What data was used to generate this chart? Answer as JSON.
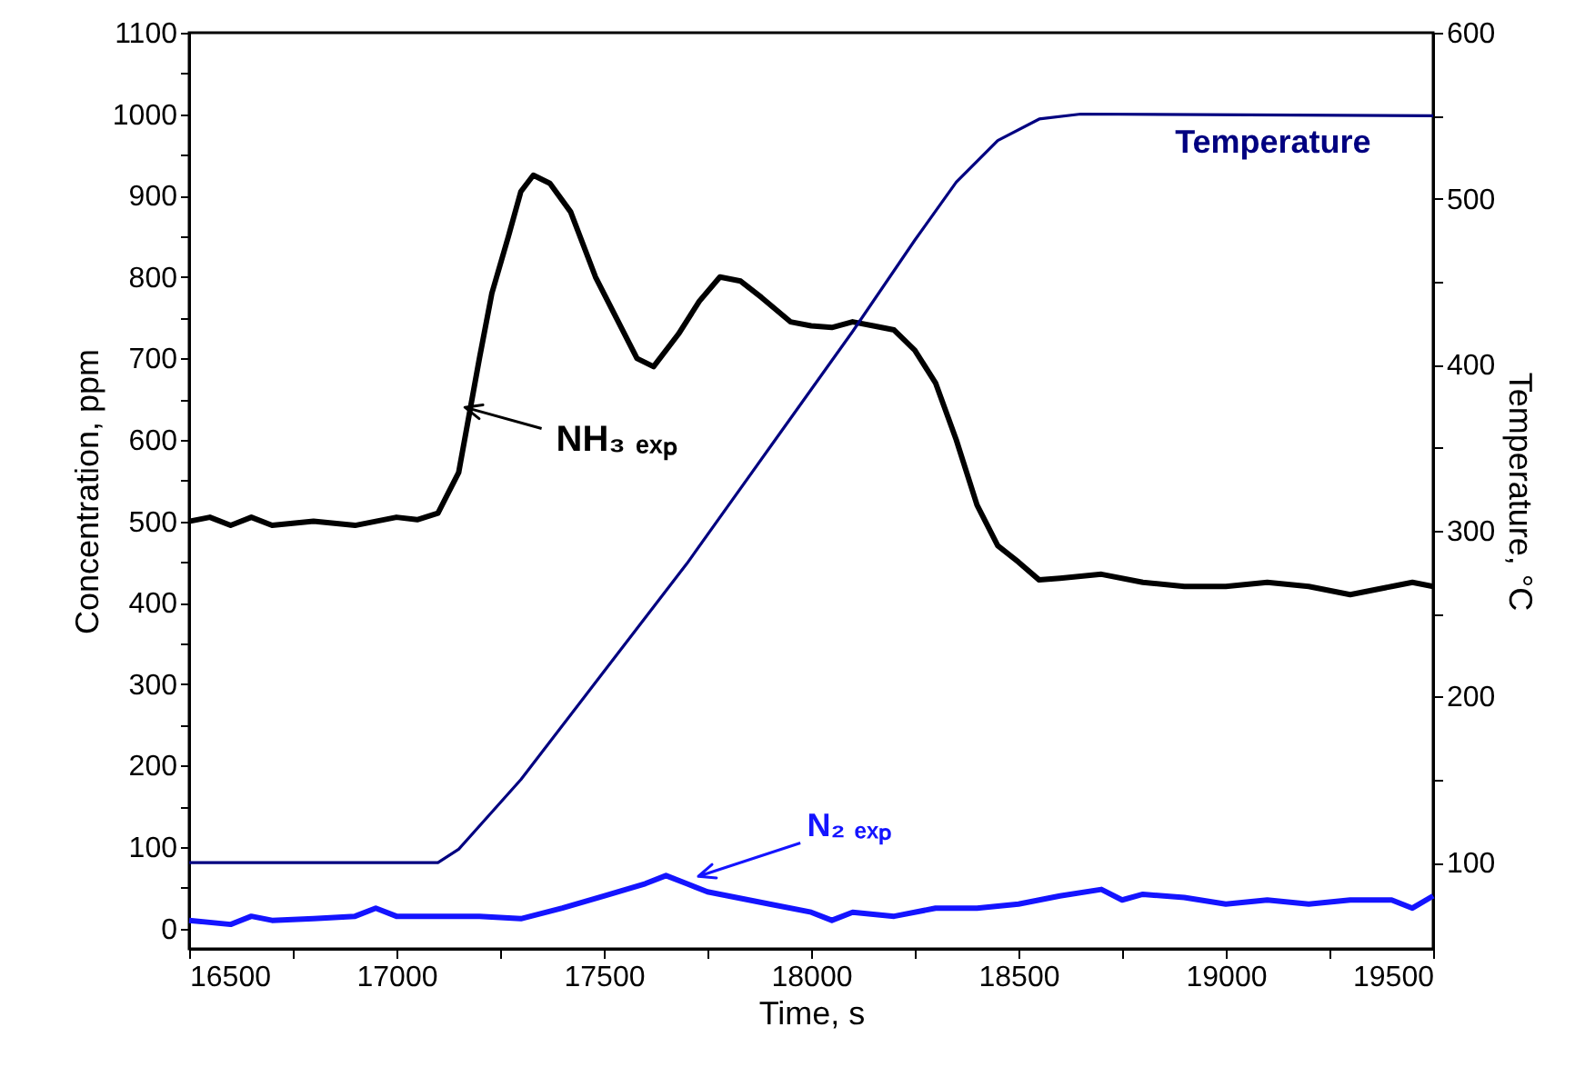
{
  "chart_data": {
    "type": "line",
    "xlabel": "Time, s",
    "ylabel": "Concentration, ppm",
    "y2label": "Temperature, °C",
    "xlim": [
      16500,
      19500
    ],
    "ylim": [
      -25,
      1100
    ],
    "y2lim": [
      48,
      600
    ],
    "xticks": [
      16500,
      {
        "value": 16750,
        "label": null
      },
      17000,
      {
        "value": 17250,
        "label": null
      },
      17500,
      {
        "value": 17750,
        "label": null
      },
      18000,
      {
        "value": 18250,
        "label": null
      },
      18500,
      {
        "value": 18750,
        "label": null
      },
      19000,
      {
        "value": 19250,
        "label": null
      },
      19500
    ],
    "yticks": [
      0,
      {
        "value": 50,
        "label": null
      },
      100,
      {
        "value": 150,
        "label": null
      },
      200,
      {
        "value": 250,
        "label": null
      },
      300,
      {
        "value": 350,
        "label": null
      },
      400,
      {
        "value": 450,
        "label": null
      },
      500,
      {
        "value": 550,
        "label": null
      },
      600,
      {
        "value": 650,
        "label": null
      },
      700,
      {
        "value": 750,
        "label": null
      },
      800,
      {
        "value": 850,
        "label": null
      },
      900,
      {
        "value": 950,
        "label": null
      },
      1000,
      {
        "value": 1050,
        "label": null
      },
      1100
    ],
    "y2ticks": [
      100,
      {
        "value": 150,
        "label": null
      },
      200,
      {
        "value": 250,
        "label": null
      },
      300,
      {
        "value": 350,
        "label": null
      },
      400,
      {
        "value": 450,
        "label": null
      },
      500,
      {
        "value": 550,
        "label": null
      },
      600
    ],
    "grid": false,
    "marker": "none",
    "line_style": "solid",
    "series": [
      {
        "name": "NH₃ ₑₓₚ",
        "color": "#000000",
        "x": [
          16500,
          16550,
          16600,
          16650,
          16700,
          16800,
          16900,
          17000,
          17050,
          17100,
          17150,
          17200,
          17230,
          17270,
          17300,
          17330,
          17370,
          17420,
          17480,
          17530,
          17580,
          17620,
          17680,
          17730,
          17780,
          17830,
          17880,
          17950,
          18000,
          18050,
          18100,
          18150,
          18200,
          18250,
          18300,
          18350,
          18400,
          18450,
          18500,
          18550,
          18600,
          18700,
          18800,
          18900,
          19000,
          19100,
          19200,
          19300,
          19400,
          19450,
          19500
        ],
        "values": [
          500,
          505,
          495,
          505,
          495,
          500,
          495,
          505,
          502,
          510,
          560,
          700,
          780,
          850,
          905,
          925,
          915,
          880,
          800,
          750,
          700,
          690,
          730,
          770,
          800,
          795,
          775,
          745,
          740,
          738,
          745,
          740,
          735,
          710,
          670,
          600,
          520,
          470,
          450,
          428,
          430,
          435,
          425,
          420,
          420,
          425,
          420,
          410,
          420,
          425,
          420
        ]
      },
      {
        "name": "N₂ ₑₓₚ",
        "color": "#1414ff",
        "x": [
          16500,
          16600,
          16650,
          16700,
          16800,
          16900,
          16950,
          17000,
          17100,
          17200,
          17300,
          17400,
          17500,
          17600,
          17650,
          17700,
          17750,
          17800,
          17900,
          18000,
          18050,
          18100,
          18200,
          18300,
          18400,
          18500,
          18600,
          18700,
          18750,
          18800,
          18900,
          19000,
          19100,
          19200,
          19300,
          19400,
          19450,
          19500
        ],
        "values": [
          10,
          5,
          15,
          10,
          12,
          15,
          25,
          15,
          15,
          15,
          12,
          25,
          40,
          55,
          65,
          55,
          45,
          40,
          30,
          20,
          10,
          20,
          15,
          25,
          25,
          30,
          40,
          48,
          35,
          42,
          38,
          30,
          35,
          30,
          35,
          35,
          25,
          40
        ]
      },
      {
        "name": "Temperature",
        "color": "#000080",
        "axis": "y2",
        "x": [
          16500,
          17000,
          17100,
          17150,
          17300,
          17500,
          17700,
          17900,
          18100,
          18250,
          18350,
          18450,
          18550,
          18650,
          19500
        ],
        "values": [
          100,
          100,
          100,
          108,
          150,
          215,
          280,
          350,
          420,
          475,
          510,
          535,
          548,
          551,
          550
        ]
      }
    ]
  }
}
